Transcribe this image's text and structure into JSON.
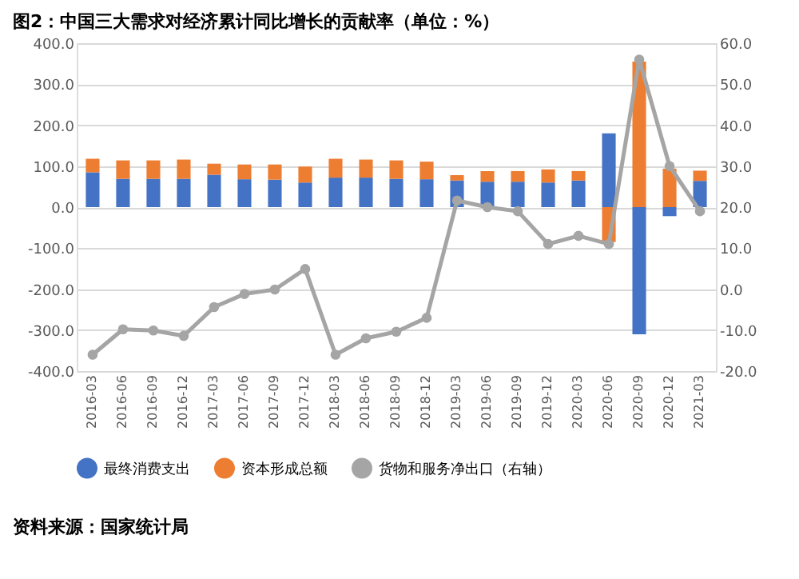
{
  "chart_data": {
    "type": "bar",
    "title": "图2：中国三大需求对经济累计同比增长的贡献率（单位：%）",
    "categories": [
      "2016-03",
      "2016-06",
      "2016-09",
      "2016-12",
      "2017-03",
      "2017-06",
      "2017-09",
      "2017-12",
      "2018-03",
      "2018-06",
      "2018-09",
      "2018-12",
      "2019-03",
      "2019-06",
      "2019-09",
      "2019-12",
      "2020-03",
      "2020-06",
      "2020-09",
      "2020-12",
      "2021-03"
    ],
    "stacked": true,
    "series": [
      {
        "name": "最终消费支出",
        "color": "#4472c4",
        "values": [
          85,
          69,
          69,
          69,
          79,
          68,
          67,
          60,
          72,
          72,
          69,
          68,
          65,
          62,
          62,
          60,
          65,
          180,
          -310,
          -22,
          64
        ]
      },
      {
        "name": "资本形成总额",
        "color": "#ed7d31",
        "values": [
          33,
          45,
          45,
          47,
          27,
          36,
          37,
          39,
          46,
          44,
          45,
          43,
          13,
          26,
          26,
          32,
          23,
          -85,
          355,
          94,
          25
        ]
      },
      {
        "name": "货物和服务净出口（右轴）",
        "color": "#a5a5a5",
        "type": "line",
        "axis": "y2",
        "marker": "circle",
        "values": [
          -16,
          -9.8,
          -10.1,
          -11.4,
          -4.4,
          -1.2,
          -0.1,
          4.9,
          -16,
          -12,
          -10.4,
          -7,
          21.6,
          20,
          19,
          11,
          13,
          11,
          56,
          30,
          19
        ]
      }
    ],
    "ylim": [
      -400,
      400
    ],
    "yticks": [
      {
        "value": -400,
        "label": "-400.0"
      },
      {
        "value": -300,
        "label": "-300.0"
      },
      {
        "value": -200,
        "label": "-200.0"
      },
      {
        "value": -100,
        "label": "-100.0"
      },
      {
        "value": 0,
        "label": "0.0"
      },
      {
        "value": 100,
        "label": "100.0"
      },
      {
        "value": 200,
        "label": "200.0"
      },
      {
        "value": 300,
        "label": "300.0"
      },
      {
        "value": 400,
        "label": "400.0"
      }
    ],
    "y2lim": [
      -20,
      60
    ],
    "y2ticks": [
      {
        "value": -20,
        "label": "-20.0"
      },
      {
        "value": -10,
        "label": "-10.0"
      },
      {
        "value": 0,
        "label": "0.0"
      },
      {
        "value": 10,
        "label": "10.0"
      },
      {
        "value": 20,
        "label": "20.0"
      },
      {
        "value": 30,
        "label": "30.0"
      },
      {
        "value": 40,
        "label": "40.0"
      },
      {
        "value": 50,
        "label": "50.0"
      },
      {
        "value": 60,
        "label": "60.0"
      }
    ],
    "grid": "y",
    "legend": "bottom",
    "annotations": [
      "资料来源：国家统计局"
    ]
  }
}
